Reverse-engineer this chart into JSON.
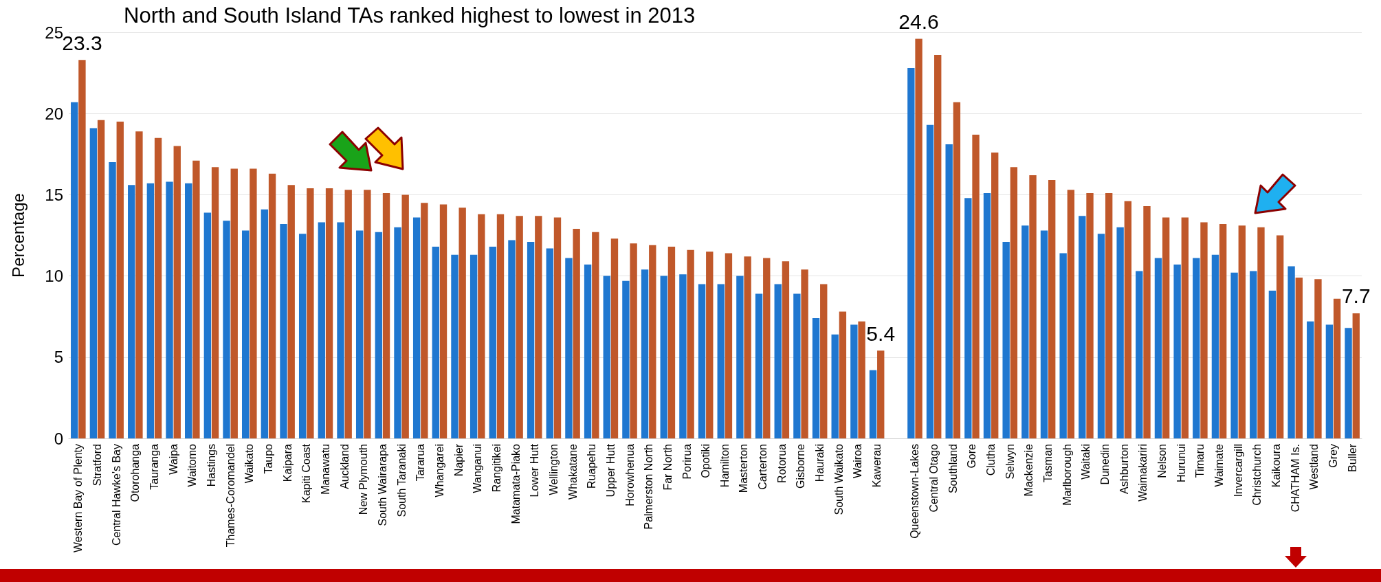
{
  "chart_data": {
    "type": "bar",
    "title": "North and South Island TAs ranked highest to lowest in 2013",
    "ylabel": "Percentage",
    "categories": [
      "Western Bay of Plenty",
      "Stratford",
      "Central Hawke's Bay",
      "Otorohanga",
      "Tauranga",
      "Waipa",
      "Waitomo",
      "Hastings",
      "Thames-Coromandel",
      "Waikato",
      "Taupo",
      "Kaipara",
      "Kapiti Coast",
      "Manawatu",
      "Auckland",
      "New Plymouth",
      "South Wairarapa",
      "South Taranaki",
      "Tararua",
      "Whangarei",
      "Napier",
      "Wanganui",
      "Rangitikei",
      "Matamata-Piako",
      "Lower Hutt",
      "Wellington",
      "Whakatane",
      "Ruapehu",
      "Upper Hutt",
      "Horowhenua",
      "Palmerston North",
      "Far North",
      "Porirua",
      "Opotiki",
      "Hamilton",
      "Masterton",
      "Carterton",
      "Rotorua",
      "Gisborne",
      "Hauraki",
      "South Waikato",
      "Wairoa",
      "Kawerau",
      null,
      "Queenstown-Lakes",
      "Central Otago",
      "Southland",
      "Gore",
      "Clutha",
      "Selwyn",
      "Mackenzie",
      "Tasman",
      "Marlborough",
      "Waitaki",
      "Dunedin",
      "Ashburton",
      "Waimakariri",
      "Nelson",
      "Hurunui",
      "Timaru",
      "Waimate",
      "Invercargill",
      "Christchurch",
      "Kaikoura",
      "CHATHAM Is.",
      "Westland",
      "Grey",
      "Buller"
    ],
    "series": [
      {
        "color": "#1f77d0",
        "values": [
          20.7,
          19.1,
          17.0,
          15.6,
          15.7,
          15.8,
          15.7,
          13.9,
          13.4,
          12.8,
          14.1,
          13.2,
          12.6,
          13.3,
          13.3,
          12.8,
          12.7,
          13.0,
          13.6,
          11.8,
          11.3,
          11.3,
          11.8,
          12.2,
          12.1,
          11.7,
          11.1,
          10.7,
          10.0,
          9.7,
          10.4,
          10.0,
          10.1,
          9.5,
          9.5,
          10.0,
          8.9,
          9.5,
          8.9,
          7.4,
          6.4,
          7.0,
          4.2,
          null,
          22.8,
          19.3,
          18.1,
          14.8,
          15.1,
          12.1,
          13.1,
          12.8,
          11.4,
          13.7,
          12.6,
          13.0,
          10.3,
          11.1,
          10.7,
          11.1,
          11.3,
          10.2,
          10.3,
          9.1,
          10.6,
          7.2,
          7.0,
          6.8
        ]
      },
      {
        "color": "#c0582a",
        "values": [
          23.3,
          19.6,
          19.5,
          18.9,
          18.5,
          18.0,
          17.1,
          16.7,
          16.6,
          16.6,
          16.3,
          15.6,
          15.4,
          15.4,
          15.3,
          15.3,
          15.1,
          15.0,
          14.5,
          14.4,
          14.2,
          13.8,
          13.8,
          13.7,
          13.7,
          13.6,
          12.9,
          12.7,
          12.3,
          12.0,
          11.9,
          11.8,
          11.6,
          11.5,
          11.4,
          11.2,
          11.1,
          10.9,
          10.4,
          9.5,
          7.8,
          7.2,
          5.4,
          null,
          24.6,
          23.6,
          20.7,
          18.7,
          17.6,
          16.7,
          16.2,
          15.9,
          15.3,
          15.1,
          15.1,
          14.6,
          14.3,
          13.6,
          13.6,
          13.3,
          13.2,
          13.1,
          13.0,
          12.5,
          9.9,
          9.8,
          8.6,
          7.7
        ],
        "value_labels": [
          "23.3",
          null,
          null,
          null,
          null,
          null,
          null,
          null,
          null,
          null,
          null,
          null,
          null,
          null,
          null,
          null,
          null,
          null,
          null,
          null,
          null,
          null,
          null,
          null,
          null,
          null,
          null,
          null,
          null,
          null,
          null,
          null,
          null,
          null,
          null,
          null,
          null,
          null,
          null,
          null,
          null,
          null,
          "5.4",
          null,
          "24.6",
          null,
          null,
          null,
          null,
          null,
          null,
          null,
          null,
          null,
          null,
          null,
          null,
          null,
          null,
          null,
          null,
          null,
          null,
          null,
          null,
          null,
          null,
          "7.7"
        ]
      }
    ],
    "ylim": [
      0,
      25
    ],
    "yticks": [
      0,
      5,
      10,
      15,
      20,
      25
    ],
    "grid": "y"
  }
}
